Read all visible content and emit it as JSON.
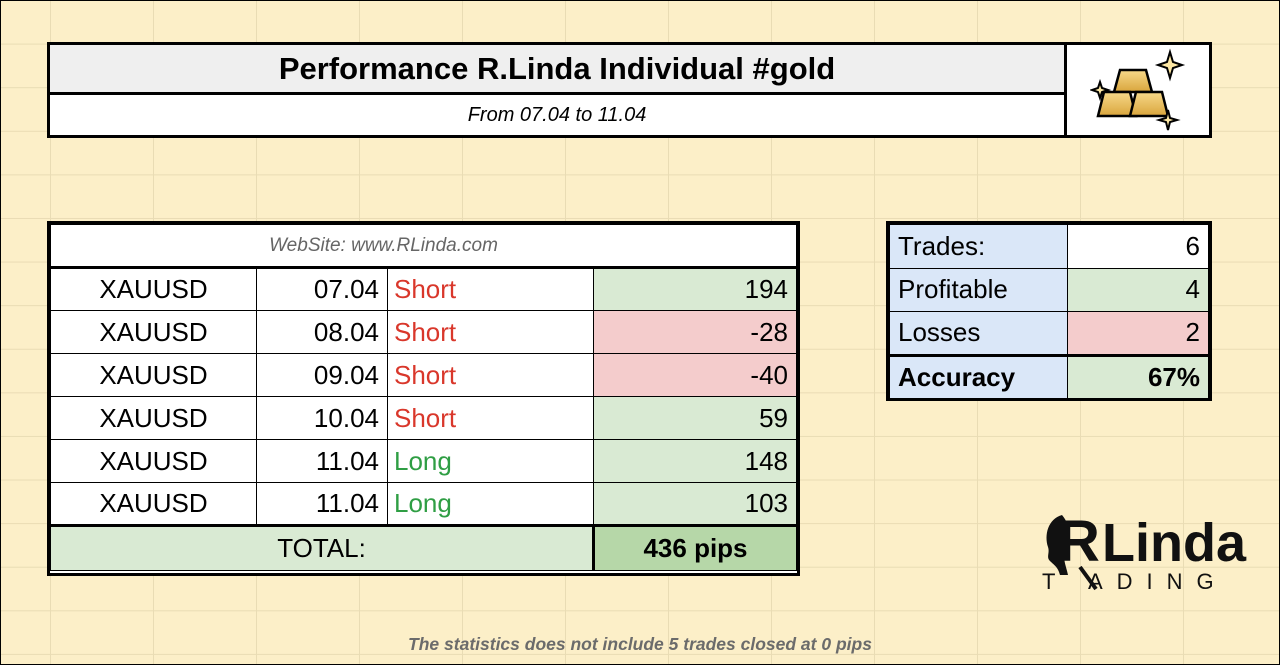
{
  "header": {
    "title": "Performance R.Linda Individual #gold",
    "subtitle": "From 07.04 to 11.04",
    "icon": "gold-bars-icon"
  },
  "trades": {
    "website": "WebSite:   www.RLinda.com",
    "rows": [
      {
        "pair": "XAUUSD",
        "date": "07.04",
        "direction": "Short",
        "pips": "194"
      },
      {
        "pair": "XAUUSD",
        "date": "08.04",
        "direction": "Short",
        "pips": "-28"
      },
      {
        "pair": "XAUUSD",
        "date": "09.04",
        "direction": "Short",
        "pips": "-40"
      },
      {
        "pair": "XAUUSD",
        "date": "10.04",
        "direction": "Short",
        "pips": "59"
      },
      {
        "pair": "XAUUSD",
        "date": "11.04",
        "direction": "Long",
        "pips": "148"
      },
      {
        "pair": "XAUUSD",
        "date": "11.04",
        "direction": "Long",
        "pips": "103"
      }
    ],
    "total_label": "TOTAL:",
    "total_value": "436 pips"
  },
  "summary": {
    "trades_label": "Trades:",
    "trades_value": "6",
    "profitable_label": "Profitable",
    "profitable_value": "4",
    "losses_label": "Losses",
    "losses_value": "2",
    "accuracy_label": "Accuracy",
    "accuracy_value": "67%"
  },
  "brand": {
    "name_top": "RLinda",
    "name_bottom": "TRADING"
  },
  "footer_note": "The statistics does not include 5 trades closed at 0 pips",
  "colors": {
    "background": "#fcefc8",
    "positive": "#d9ead3",
    "negative": "#f4cccc",
    "label_blue": "#dae7f8",
    "short_red": "#d9372b",
    "long_green": "#2f9e44"
  }
}
